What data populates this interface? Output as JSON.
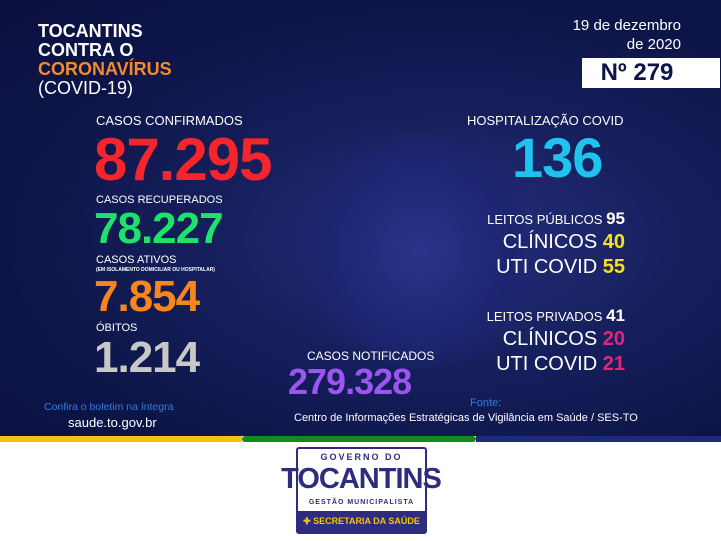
{
  "header": {
    "title_line1": "TOCANTINS",
    "title_line2": "CONTRA O",
    "title_line3": "CORONAVÍRUS",
    "title_line4": "(COVID-19)",
    "date_line1": "19 de dezembro",
    "date_line2": "de 2020",
    "bulletin_number": "Nº 279"
  },
  "stats": {
    "confirmed": {
      "label": "CASOS CONFIRMADOS",
      "value": "87.295",
      "color": "#f5252b"
    },
    "recovered": {
      "label": "CASOS RECUPERADOS",
      "value": "78.227",
      "color": "#1ee26a"
    },
    "active": {
      "label": "CASOS ATIVOS",
      "sublabel": "(EM ISOLAMENTO DOMICILIAR OU HOSPITALAR)",
      "value": "7.854",
      "color": "#f7861d"
    },
    "deaths": {
      "label": "ÓBITOS",
      "value": "1.214",
      "color": "#c8c8c8"
    },
    "notified": {
      "label": "CASOS NOTIFICADOS",
      "value": "279.328",
      "color": "#9b55f0"
    }
  },
  "hospital": {
    "label": "HOSPITALIZAÇÃO COVID",
    "value": "136",
    "color": "#1fc4ee",
    "public": {
      "label": "LEITOS PÚBLICOS",
      "value": "95",
      "clinic_label": "CLÍNICOS",
      "clinic_value": "40",
      "icu_label": "UTI COVID",
      "icu_value": "55",
      "accent": "#f6e11b"
    },
    "private": {
      "label": "LEITOS PRIVADOS",
      "value": "41",
      "clinic_label": "CLÍNICOS",
      "clinic_value": "20",
      "icu_label": "UTI COVID",
      "icu_value": "21",
      "accent": "#e3257c"
    }
  },
  "footer": {
    "bulletin_text": "Confira o boletim na íntegra",
    "site": "saude.to.gov.br",
    "source_label": "Fonte:",
    "source_text": "Centro de Informações Estratégicas de Vigilância em Saúde / SES-TO"
  },
  "logo": {
    "top": "GOVERNO DO",
    "name": "TOCANTINS",
    "sub": "GESTÃO MUNICIPALISTA",
    "dept": "SECRETARIA DA SAÚDE"
  }
}
